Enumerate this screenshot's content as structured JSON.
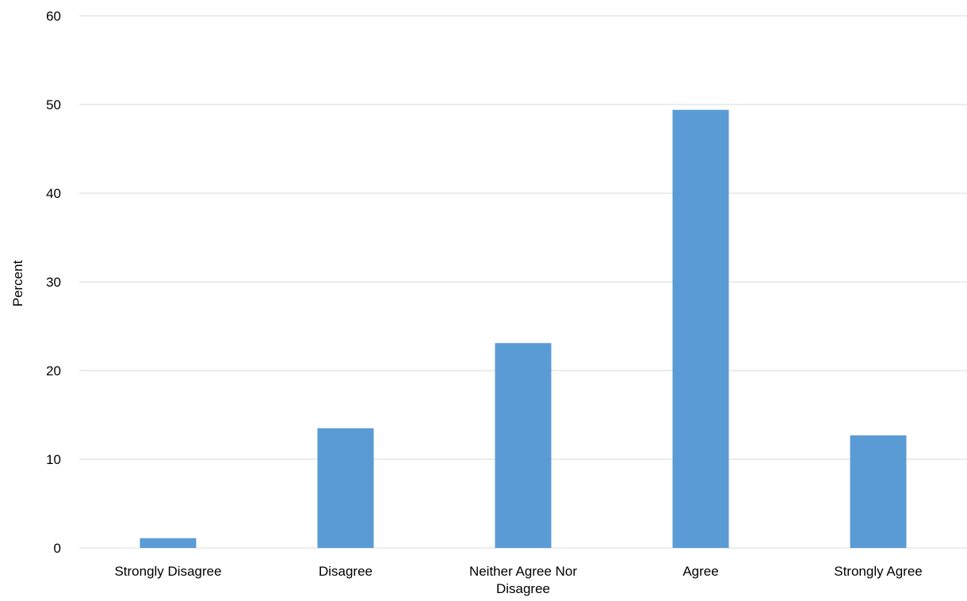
{
  "chart_data": {
    "type": "bar",
    "title": "",
    "xlabel": "",
    "ylabel": "Percent",
    "categories": [
      [
        "Strongly Disagree"
      ],
      [
        "Disagree"
      ],
      [
        "Neither Agree Nor",
        "Disagree"
      ],
      [
        "Agree"
      ],
      [
        "Strongly Agree"
      ]
    ],
    "values": [
      1.1,
      13.5,
      23.1,
      49.4,
      12.7
    ],
    "ylim": [
      0,
      60
    ],
    "yticks": [
      0,
      10,
      20,
      30,
      40,
      50,
      60
    ],
    "grid": true,
    "legend": "none",
    "bar_color": "#5b9bd5",
    "grid_color": "#d9d9d9"
  }
}
